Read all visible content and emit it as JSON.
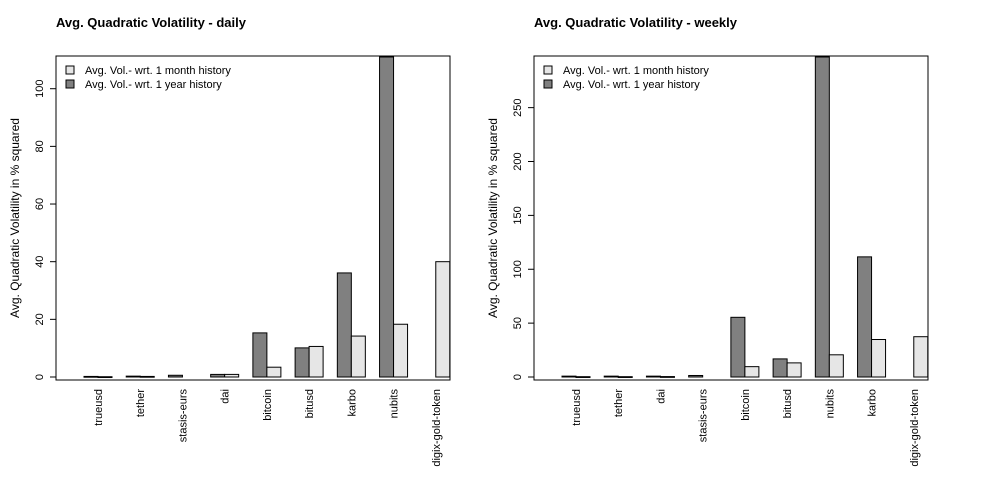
{
  "chart_data": [
    {
      "type": "bar",
      "title": "Avg. Quadratic Volatility - daily",
      "xlabel": "",
      "ylabel": "Avg. Quadratic Volatility in % squared",
      "categories": [
        "trueusd",
        "tether",
        "stasis-eurs",
        "dai",
        "bitcoin",
        "bitusd",
        "karbo",
        "nubits",
        "digix-gold-token"
      ],
      "series": [
        {
          "name": "Avg. Vol.- wrt. 1 year history",
          "color": "#808080",
          "values": [
            0.2,
            0.3,
            0.6,
            0.9,
            15.3,
            10.1,
            36.1,
            111,
            null
          ]
        },
        {
          "name": "Avg. Vol.- wrt. 1 month history",
          "color": "#e6e6e6",
          "values": [
            0.1,
            0.2,
            null,
            0.9,
            3.4,
            10.6,
            14.2,
            18.3,
            40.0
          ]
        }
      ],
      "yticks": [
        0,
        20,
        40,
        60,
        80,
        100
      ],
      "ylim": [
        0,
        111
      ],
      "legend_position": "top-left",
      "grid": false
    },
    {
      "type": "bar",
      "title": "Avg. Quadratic Volatility - weekly",
      "xlabel": "",
      "ylabel": "Avg. Quadratic Volatility in % squared",
      "categories": [
        "trueusd",
        "tether",
        "dai",
        "stasis-eurs",
        "bitcoin",
        "bitusd",
        "nubits",
        "karbo",
        "digix-gold-token"
      ],
      "series": [
        {
          "name": "Avg. Vol.- wrt. 1 year history",
          "color": "#808080",
          "values": [
            0.8,
            0.8,
            0.8,
            1.4,
            55.4,
            16.8,
            297,
            111.5,
            null
          ]
        },
        {
          "name": "Avg. Vol.- wrt. 1 month history",
          "color": "#e6e6e6",
          "values": [
            0.3,
            0.3,
            0.4,
            null,
            9.6,
            13.1,
            20.6,
            34.8,
            37.4
          ]
        }
      ],
      "yticks": [
        0,
        50,
        100,
        150,
        200,
        250
      ],
      "ylim": [
        0,
        297
      ],
      "legend_position": "top-left",
      "grid": false
    }
  ]
}
